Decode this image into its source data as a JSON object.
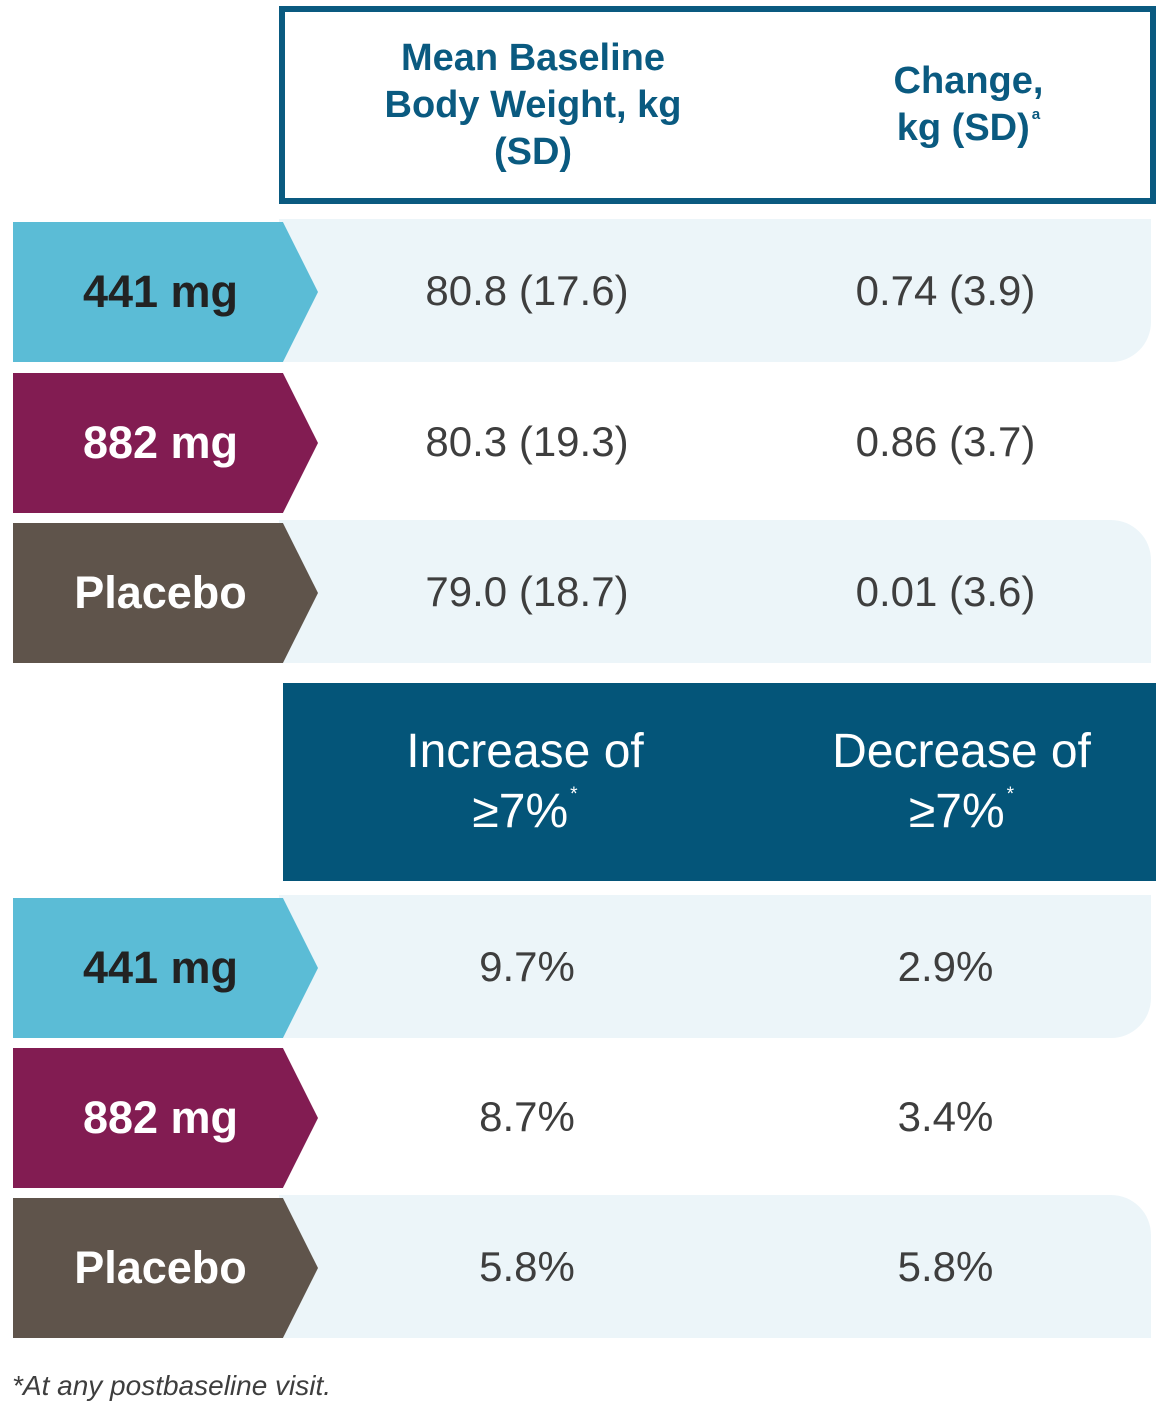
{
  "table1": {
    "headers": [
      "Mean Baseline Body Weight, kg (SD)",
      "Change, kg (SD)"
    ],
    "header_superscripts": [
      "",
      "a"
    ],
    "rows": [
      {
        "label": "441 mg",
        "values": [
          "80.8 (17.6)",
          "0.74 (3.9)"
        ]
      },
      {
        "label": "882 mg",
        "values": [
          "80.3 (19.3)",
          "0.86 (3.7)"
        ]
      },
      {
        "label": "Placebo",
        "values": [
          "79.0 (18.7)",
          "0.01 (3.6)"
        ]
      }
    ]
  },
  "table2": {
    "headers": [
      "Increase of ≥7%",
      "Decrease of ≥7%"
    ],
    "header_superscripts": [
      "*",
      "*"
    ],
    "rows": [
      {
        "label": "441 mg",
        "values": [
          "9.7%",
          "2.9%"
        ]
      },
      {
        "label": "882 mg",
        "values": [
          "8.7%",
          "3.4%"
        ]
      },
      {
        "label": "Placebo",
        "values": [
          "5.8%",
          "5.8%"
        ]
      }
    ]
  },
  "footnote": "*At any postbaseline visit.",
  "colors": {
    "441_mg": "#5bbcd6",
    "882_mg": "#821c52",
    "placebo": "#5f544b",
    "header_navy": "#045579",
    "row_band": "#ecf5f9"
  }
}
